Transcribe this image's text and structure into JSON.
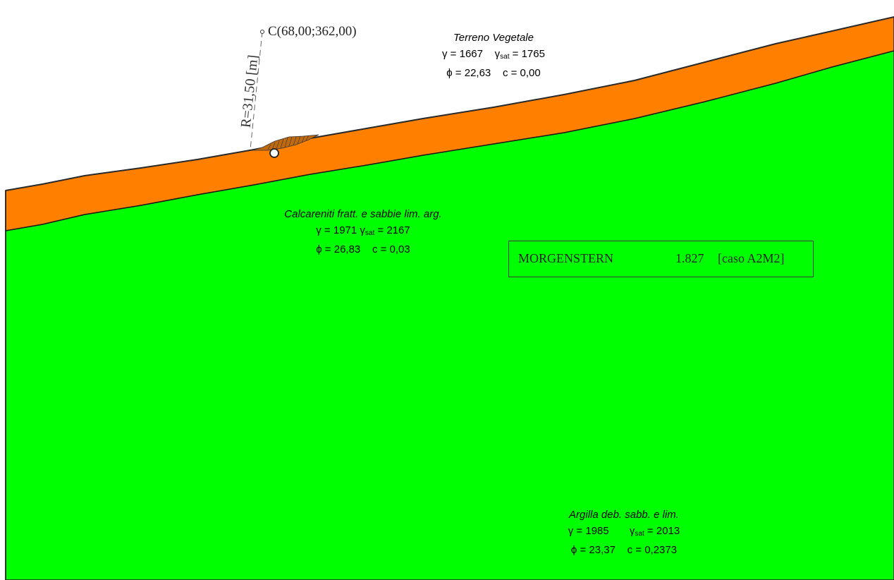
{
  "colors": {
    "terreno_vegetale": "#ff8000",
    "calcareniti": "#00ff00",
    "argilla": "#00ff00",
    "outline": "#1a1a1a"
  },
  "center": {
    "label": "C(68,00;362,00)",
    "radius_label": "R=31,50 [m]"
  },
  "layers": [
    {
      "name": "Terreno Vegetale",
      "gamma": "γ = 1667",
      "gamma_sat_prefix": "γ",
      "gamma_sat_sub": "sat",
      "gamma_sat_value": " = 1765",
      "phi": "ϕ = 22,63",
      "c": "c = 0,00"
    },
    {
      "name": "Calcareniti fratt. e sabbie lim. arg.",
      "gamma": "γ = 1971",
      "gamma_sat_prefix": "γ",
      "gamma_sat_sub": "sat",
      "gamma_sat_value": " = 2167",
      "phi": "ϕ = 26,83",
      "c": "c = 0,03"
    },
    {
      "name": "Argilla deb. sabb. e lim.",
      "gamma": "γ = 1985",
      "gamma_sat_prefix": "γ",
      "gamma_sat_sub": "sat",
      "gamma_sat_value": " = 2013",
      "phi": "ϕ = 23,37",
      "c": "c = 0,2373"
    }
  ],
  "result": {
    "method": "MORGENSTERN",
    "factor": "1.827",
    "case": "[caso A2M2]"
  }
}
